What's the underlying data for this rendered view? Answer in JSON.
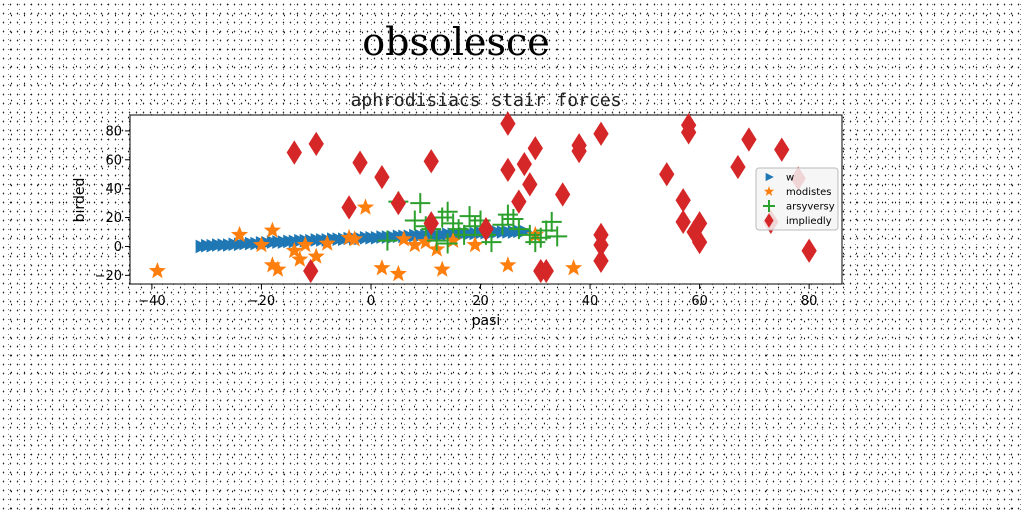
{
  "figure": {
    "suptitle": "obsolesce"
  },
  "chart_data": {
    "type": "scatter",
    "title": "aphrodisiacs stair forces",
    "xlabel": "pasi",
    "ylabel": "birded",
    "xlim": [
      -44,
      86
    ],
    "ylim": [
      -26,
      91
    ],
    "xticks": [
      -40,
      -20,
      0,
      20,
      40,
      60,
      80
    ],
    "yticks": [
      -20,
      0,
      20,
      40,
      60,
      80
    ],
    "legend_position": "right",
    "series": [
      {
        "name": "w",
        "marker": "triangle-right",
        "color": "#1f77b4",
        "points": [
          [
            -31,
            0
          ],
          [
            -30,
            0.5
          ],
          [
            -29,
            0.5
          ],
          [
            -28,
            1
          ],
          [
            -27,
            1
          ],
          [
            -26,
            1
          ],
          [
            -25,
            1.5
          ],
          [
            -24,
            1.5
          ],
          [
            -23,
            2
          ],
          [
            -22,
            2
          ],
          [
            -21,
            2
          ],
          [
            -20,
            2.5
          ],
          [
            -19,
            2.5
          ],
          [
            -18,
            3
          ],
          [
            -17,
            3
          ],
          [
            -16,
            3
          ],
          [
            -15,
            3.5
          ],
          [
            -14,
            3.5
          ],
          [
            -13,
            4
          ],
          [
            -12,
            4
          ],
          [
            -11,
            4
          ],
          [
            -10,
            4.5
          ],
          [
            -9,
            4.5
          ],
          [
            -8,
            4.5
          ],
          [
            -7,
            5
          ],
          [
            -6,
            5
          ],
          [
            -5,
            5
          ],
          [
            -4,
            5.5
          ],
          [
            -3,
            5.5
          ],
          [
            -2,
            5.5
          ],
          [
            -1,
            6
          ],
          [
            0,
            6
          ],
          [
            1,
            6
          ],
          [
            2,
            6.5
          ],
          [
            3,
            6.5
          ],
          [
            4,
            6.5
          ],
          [
            5,
            7
          ],
          [
            6,
            7
          ],
          [
            7,
            7
          ],
          [
            8,
            7.5
          ],
          [
            9,
            7.5
          ],
          [
            10,
            7.5
          ],
          [
            11,
            8
          ],
          [
            12,
            8
          ],
          [
            13,
            8
          ],
          [
            14,
            8.5
          ],
          [
            15,
            8.5
          ],
          [
            16,
            8.5
          ],
          [
            17,
            9
          ],
          [
            18,
            9
          ],
          [
            19,
            9
          ],
          [
            20,
            9.5
          ],
          [
            21,
            9.5
          ],
          [
            22,
            9.5
          ],
          [
            23,
            10
          ],
          [
            24,
            10
          ],
          [
            25,
            10
          ],
          [
            26,
            10
          ],
          [
            27,
            10.5
          ],
          [
            28,
            10.5
          ]
        ]
      },
      {
        "name": "modistes",
        "marker": "star",
        "color": "#ff7f0e",
        "points": [
          [
            -39,
            -17
          ],
          [
            -18,
            11
          ],
          [
            -18,
            -13
          ],
          [
            -17,
            -16
          ],
          [
            -20,
            1
          ],
          [
            -14,
            -3
          ],
          [
            -13,
            -9
          ],
          [
            -12,
            1
          ],
          [
            -8,
            2
          ],
          [
            -4,
            6
          ],
          [
            -3,
            5
          ],
          [
            -1,
            27
          ],
          [
            2,
            -15
          ],
          [
            5,
            -19
          ],
          [
            6,
            5
          ],
          [
            8,
            1
          ],
          [
            10,
            3
          ],
          [
            12,
            -2
          ],
          [
            13,
            -16
          ],
          [
            15,
            4
          ],
          [
            19,
            1
          ],
          [
            25,
            -13
          ],
          [
            30,
            8
          ],
          [
            37,
            -15
          ],
          [
            -24,
            8
          ],
          [
            -10,
            -7
          ]
        ]
      },
      {
        "name": "arsyversy",
        "marker": "plus",
        "color": "#2ca02c",
        "points": [
          [
            5,
            31
          ],
          [
            8,
            18
          ],
          [
            9,
            30
          ],
          [
            10,
            14
          ],
          [
            11,
            12
          ],
          [
            12,
            4
          ],
          [
            13,
            20
          ],
          [
            14,
            24
          ],
          [
            15,
            16
          ],
          [
            16,
            12
          ],
          [
            17,
            8
          ],
          [
            18,
            21
          ],
          [
            19,
            14
          ],
          [
            20,
            18
          ],
          [
            22,
            3
          ],
          [
            24,
            15
          ],
          [
            25,
            22
          ],
          [
            26,
            19
          ],
          [
            29,
            8
          ],
          [
            30,
            3
          ],
          [
            31,
            6
          ],
          [
            32,
            11
          ],
          [
            33,
            17
          ],
          [
            34,
            7
          ],
          [
            21,
            8
          ],
          [
            27,
            12
          ],
          [
            3,
            4
          ],
          [
            14,
            2
          ]
        ]
      },
      {
        "name": "impliedly",
        "marker": "diamond",
        "color": "#d62728",
        "points": [
          [
            -14,
            65
          ],
          [
            -10,
            71
          ],
          [
            -11,
            -17
          ],
          [
            -4,
            27
          ],
          [
            -2,
            58
          ],
          [
            2,
            48
          ],
          [
            5,
            30
          ],
          [
            11,
            59
          ],
          [
            11,
            16
          ],
          [
            21,
            12
          ],
          [
            25,
            85
          ],
          [
            25,
            53
          ],
          [
            27,
            31
          ],
          [
            28,
            57
          ],
          [
            29,
            43
          ],
          [
            30,
            68
          ],
          [
            31,
            -17
          ],
          [
            32,
            -17
          ],
          [
            35,
            36
          ],
          [
            38,
            70
          ],
          [
            38,
            66
          ],
          [
            42,
            78
          ],
          [
            42,
            8
          ],
          [
            42,
            1
          ],
          [
            42,
            -10
          ],
          [
            54,
            50
          ],
          [
            57,
            32
          ],
          [
            57,
            17
          ],
          [
            58,
            79
          ],
          [
            58,
            84
          ],
          [
            59,
            10
          ],
          [
            60,
            16
          ],
          [
            60,
            3
          ],
          [
            67,
            55
          ],
          [
            69,
            74
          ],
          [
            73,
            17
          ],
          [
            75,
            67
          ],
          [
            78,
            47
          ],
          [
            80,
            -3
          ]
        ]
      }
    ]
  }
}
